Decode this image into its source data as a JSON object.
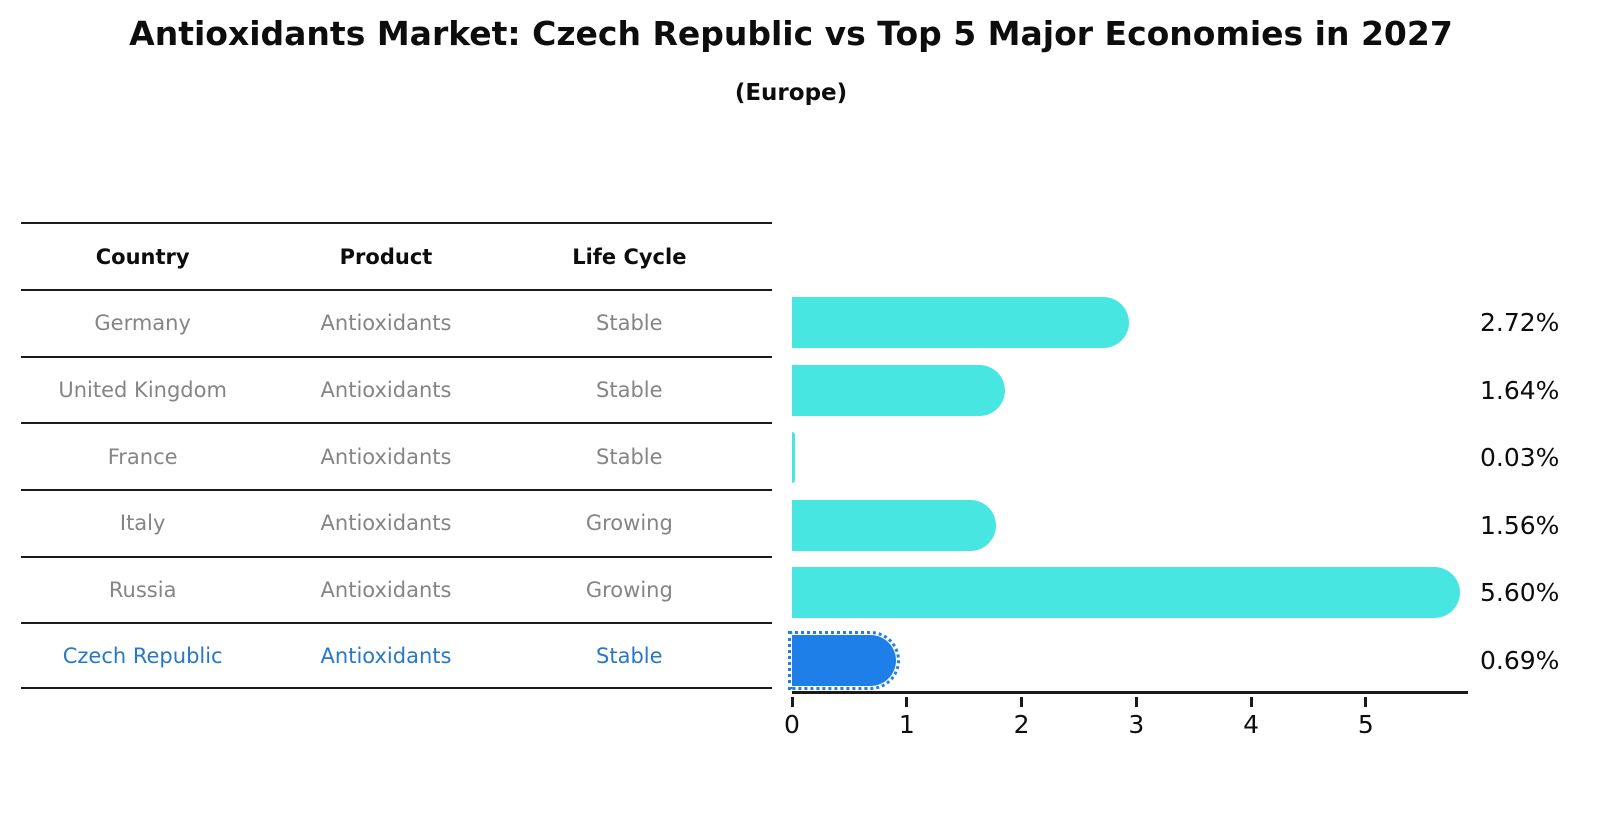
{
  "page": {
    "title": "Antioxidants Market: Czech Republic vs Top 5 Major Economies in 2027",
    "subtitle": "(Europe)"
  },
  "table": {
    "headers": [
      "Country",
      "Product",
      "Life Cycle"
    ],
    "rows": [
      {
        "country": "Germany",
        "product": "Antioxidants",
        "life_cycle": "Stable"
      },
      {
        "country": "United Kingdom",
        "product": "Antioxidants",
        "life_cycle": "Stable"
      },
      {
        "country": "France",
        "product": "Antioxidants",
        "life_cycle": "Stable"
      },
      {
        "country": "Italy",
        "product": "Antioxidants",
        "life_cycle": "Growing"
      },
      {
        "country": "Russia",
        "product": "Antioxidants",
        "life_cycle": "Growing"
      },
      {
        "country": "Czech Republic",
        "product": "Antioxidants",
        "life_cycle": "Stable"
      }
    ]
  },
  "chart_data": {
    "type": "bar",
    "orientation": "horizontal",
    "title": "Antioxidants Market: Czech Republic vs Top 5 Major Economies in 2027",
    "subtitle": "(Europe)",
    "categories": [
      "Germany",
      "United Kingdom",
      "France",
      "Italy",
      "Russia",
      "Czech Republic"
    ],
    "values": [
      2.72,
      1.64,
      0.03,
      1.56,
      5.6,
      0.69
    ],
    "labels": [
      "2.72%",
      "1.64%",
      "0.03%",
      "1.56%",
      "5.60%",
      "0.69%"
    ],
    "xticks": [
      "0",
      "1",
      "2",
      "3",
      "4",
      "5"
    ],
    "xlim": [
      0,
      5.89
    ],
    "highlight_index": 5,
    "bar_colors": [
      "#48E6E1",
      "#48E6E1",
      "#48E6E1",
      "#48E6E1",
      "#48E6E1",
      "#1E7FE8"
    ],
    "legend_position": "none",
    "grid": false
  },
  "colors": {
    "bar": "#48E6E1",
    "highlight_bar": "#1E7FE8",
    "highlight_text": "#2878C8",
    "row_text": "#858585",
    "axis": "#1a1a1a"
  }
}
